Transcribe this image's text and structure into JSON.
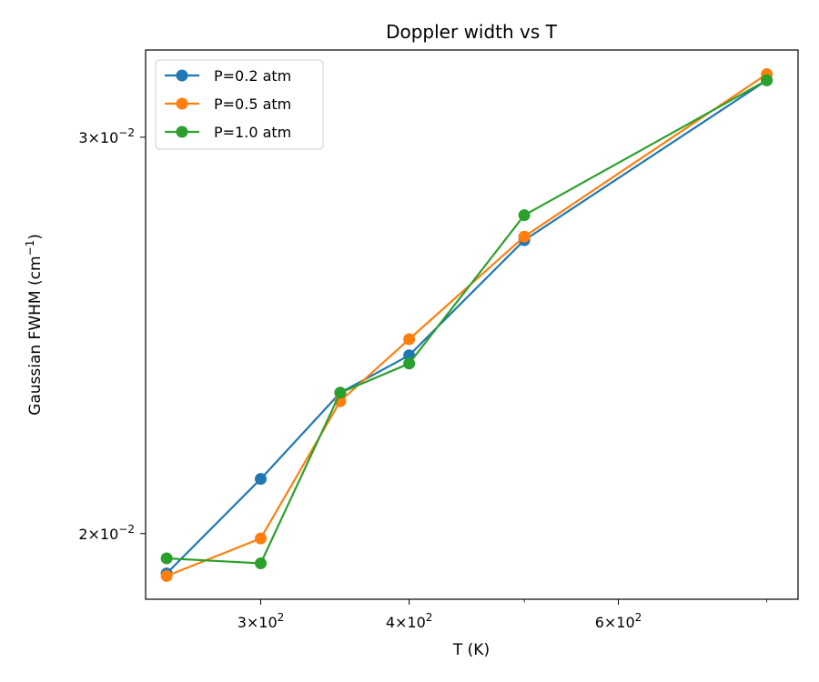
{
  "chart_data": {
    "type": "line",
    "title": "Doppler width vs T",
    "xlabel": "T (K)",
    "ylabel_main": "Gaussian FWHM (cm",
    "ylabel_sup": "−1",
    "ylabel_end": ")",
    "xscale": "log",
    "yscale": "log",
    "xlim": [
      240,
      850
    ],
    "ylim": [
      0.0187,
      0.0328
    ],
    "x_ticks": [
      {
        "value": 300,
        "mant": "3",
        "exp": "2"
      },
      {
        "value": 400,
        "mant": "4",
        "exp": "2"
      },
      {
        "value": 600,
        "mant": "6",
        "exp": "2"
      }
    ],
    "x_minor_ticks": [
      500,
      800
    ],
    "y_ticks": [
      {
        "value": 0.02,
        "mant": "2",
        "exp": "−2"
      },
      {
        "value": 0.03,
        "mant": "3",
        "exp": "−2"
      }
    ],
    "x": [
      250,
      300,
      350,
      400,
      500,
      800
    ],
    "series": [
      {
        "name": "P=0.2 atm",
        "color": "#1f77b4",
        "values": [
          0.0192,
          0.02115,
          0.0231,
          0.024,
          0.027,
          0.0318
        ]
      },
      {
        "name": "P=0.5 atm",
        "color": "#ff7f0e",
        "values": [
          0.01915,
          0.0199,
          0.0229,
          0.0244,
          0.0271,
          0.032
        ]
      },
      {
        "name": "P=1.0 atm",
        "color": "#2ca02c",
        "values": [
          0.0195,
          0.0194,
          0.0231,
          0.0238,
          0.0277,
          0.0318
        ]
      }
    ],
    "grid": false,
    "legend_position": "upper-left"
  }
}
